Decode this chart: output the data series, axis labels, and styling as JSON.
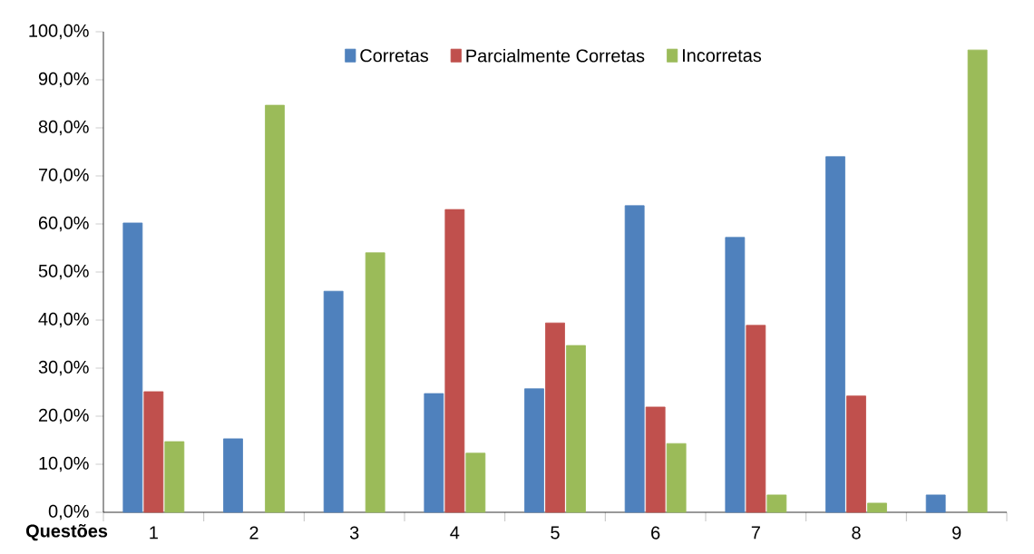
{
  "chart_data": {
    "type": "bar",
    "xlabel": "Questões",
    "categories": [
      "1",
      "2",
      "3",
      "4",
      "5",
      "6",
      "7",
      "8",
      "9"
    ],
    "series": [
      {
        "name": "Corretas",
        "color": "#4f81bd",
        "values": [
          60.2,
          15.3,
          46.0,
          24.7,
          25.7,
          63.8,
          57.2,
          74.0,
          3.6
        ]
      },
      {
        "name": "Parcialmente Corretas",
        "color": "#c0504d",
        "values": [
          25.1,
          null,
          null,
          63.0,
          39.4,
          21.9,
          38.9,
          24.2,
          null
        ]
      },
      {
        "name": "Incorretas",
        "color": "#9bbb59",
        "values": [
          14.7,
          84.7,
          54.0,
          12.3,
          34.7,
          14.3,
          3.6,
          1.9,
          96.2
        ]
      }
    ],
    "ylim": [
      0,
      100
    ],
    "yticks": [
      {
        "value": 0,
        "label": "0,0%"
      },
      {
        "value": 10,
        "label": "10,0%"
      },
      {
        "value": 20,
        "label": "20,0%"
      },
      {
        "value": 30,
        "label": "30,0%"
      },
      {
        "value": 40,
        "label": "40,0%"
      },
      {
        "value": 50,
        "label": "50,0%"
      },
      {
        "value": 60,
        "label": "60,0%"
      },
      {
        "value": 70,
        "label": "70,0%"
      },
      {
        "value": 80,
        "label": "80,0%"
      },
      {
        "value": 90,
        "label": "90,0%"
      },
      {
        "value": 100,
        "label": "100,0%"
      }
    ],
    "legend": "top",
    "grid": false
  }
}
